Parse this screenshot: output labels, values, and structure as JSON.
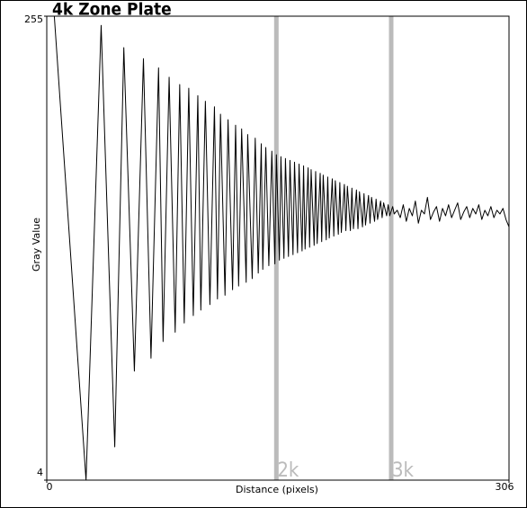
{
  "chart_data": {
    "type": "line",
    "title": "4k Zone Plate",
    "xlabel": "Distance (pixels)",
    "ylabel": "Gray Value",
    "xlim": [
      0,
      306
    ],
    "ylim": [
      4,
      255
    ],
    "xticks": [
      0,
      306
    ],
    "yticks": [
      4,
      255
    ],
    "color": "#000000",
    "markers": [
      {
        "x": 152,
        "label": "2k"
      },
      {
        "x": 228,
        "label": "3k"
      }
    ],
    "marker_color": "#bbbbbb",
    "x": [
      5,
      26,
      36,
      45,
      51,
      58,
      64,
      69,
      74,
      77,
      81,
      85,
      88,
      91,
      94,
      97,
      100,
      102,
      105,
      108,
      111,
      113,
      115,
      118,
      120,
      123,
      125,
      127,
      129,
      132,
      133,
      136,
      138,
      140,
      142,
      143,
      145,
      147,
      149,
      151,
      152,
      154,
      155,
      157,
      158,
      160,
      161,
      163,
      164,
      166,
      167,
      169,
      170,
      171,
      173,
      174,
      175,
      177,
      178,
      179,
      181,
      182,
      183,
      185,
      186,
      187,
      189,
      190,
      191,
      193,
      194,
      195,
      197,
      198,
      199,
      201,
      202,
      203,
      205,
      206,
      207,
      209,
      210,
      211,
      213,
      214,
      215,
      217,
      218,
      219,
      221,
      222,
      223,
      225,
      226,
      227,
      229,
      230,
      232,
      234,
      236,
      238,
      240,
      242,
      244,
      246,
      248,
      250,
      252,
      254,
      256,
      258,
      260,
      262,
      264,
      266,
      268,
      270,
      272,
      274,
      276,
      278,
      280,
      282,
      284,
      286,
      288,
      290,
      292,
      294,
      296,
      298,
      300,
      302,
      304,
      306
    ],
    "values": [
      255,
      4,
      250,
      22,
      238,
      63,
      232,
      70,
      227,
      79,
      222,
      84,
      218,
      89,
      216,
      93,
      212,
      96,
      209,
      99,
      206,
      102,
      202,
      104,
      199,
      107,
      196,
      109,
      194,
      111,
      191,
      113,
      189,
      116,
      186,
      118,
      184,
      120,
      182,
      121,
      180,
      123,
      179,
      124,
      178,
      125,
      177,
      126,
      176,
      127,
      175,
      128,
      174,
      129,
      173,
      130,
      172,
      131,
      171,
      132,
      170,
      133,
      169,
      134,
      168,
      135,
      167,
      136,
      166,
      137,
      165,
      138,
      164,
      139,
      163,
      139,
      162,
      140,
      161,
      140,
      160,
      141,
      159,
      142,
      158,
      143,
      157,
      144,
      156,
      145,
      155,
      146,
      154,
      147,
      153,
      147,
      152,
      148,
      150,
      146,
      153,
      144,
      151,
      147,
      155,
      143,
      150,
      148,
      157,
      145,
      149,
      152,
      144,
      151,
      147,
      153,
      146,
      150,
      154,
      145,
      149,
      152,
      146,
      151,
      148,
      153,
      145,
      150,
      147,
      152,
      146,
      150,
      148,
      151,
      145,
      141
    ]
  }
}
